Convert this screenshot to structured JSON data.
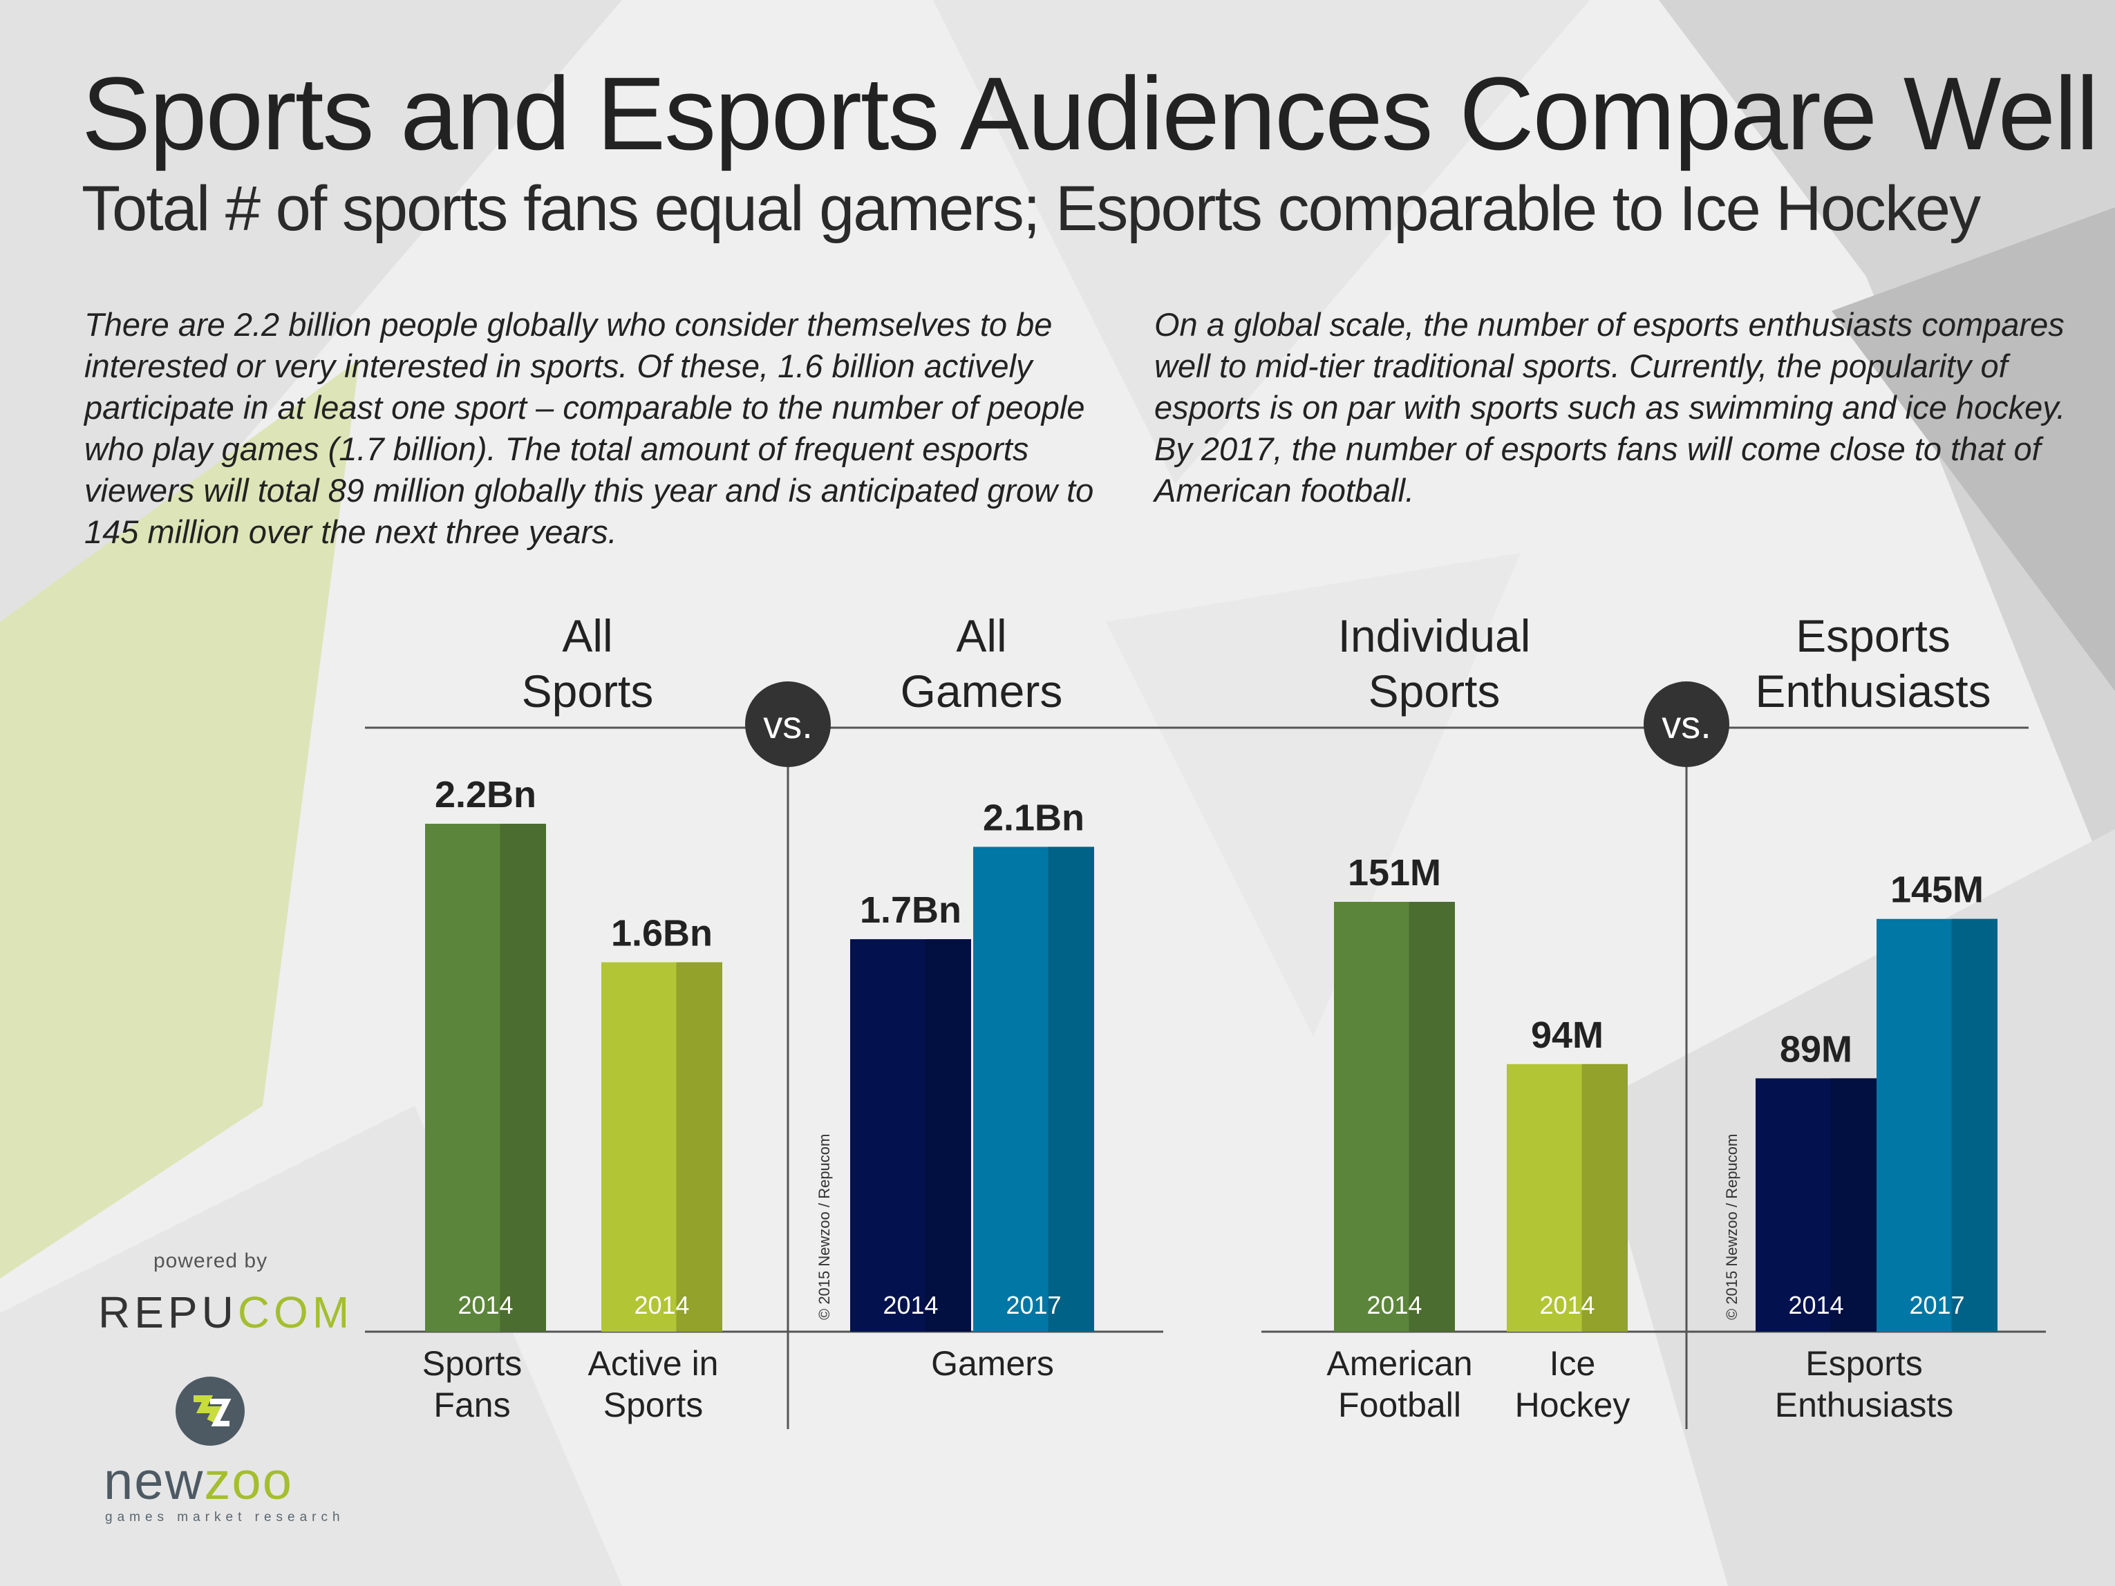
{
  "header": {
    "title": "Sports and Esports Audiences Compare Well",
    "subtitle": "Total # of sports fans equal gamers; Esports comparable to Ice Hockey"
  },
  "paragraphs": {
    "left": "There are 2.2 billion people globally who consider themselves to be interested or very interested in sports. Of these, 1.6 billion actively participate in at least one sport – comparable to the number of people who play games (1.7 billion). The total amount of frequent esports viewers will total 89 million globally this year and is anticipated grow to 145 million over the next three years.",
    "right": "On a global scale, the number of esports enthusiasts compares well to mid-tier traditional sports. Currently, the popularity of esports is on par with sports such as swimming and ice hockey. By 2017, the number of esports fans will come close to that of American football."
  },
  "group_labels": {
    "all_sports": "All Sports",
    "all_gamers": "All Gamers",
    "individual_sports": "Individual Sports",
    "esports_enthusiasts": "Esports Enthusiasts"
  },
  "vs_label": "vs.",
  "copyright": "© 2015 Newzoo / Repucom",
  "branding": {
    "powered_by": "powered by",
    "repucom_main": "REPU",
    "repucom_accent": "COM",
    "newzoo_main": "new",
    "newzoo_accent": "zoo",
    "tagline": "games market research"
  },
  "colors": {
    "green_dark": "#5b853a",
    "green_light": "#b2c535",
    "navy": "#03124f",
    "teal": "#0077a4",
    "vs_circle": "#333333",
    "axis": "#555555"
  },
  "chart_data": [
    {
      "type": "bar",
      "title": "All Sports vs. All Gamers",
      "unit": "billion people",
      "ylim": [
        0,
        2.2
      ],
      "bars": [
        {
          "category": "Sports Fans",
          "year": "2014",
          "value": 2.2,
          "label": "2.2Bn",
          "color": "#5b853a"
        },
        {
          "category": "Active in Sports",
          "year": "2014",
          "value": 1.6,
          "label": "1.6Bn",
          "color": "#b2c535"
        },
        {
          "category": "Gamers",
          "year": "2014",
          "value": 1.7,
          "label": "1.7Bn",
          "color": "#03124f"
        },
        {
          "category": "Gamers",
          "year": "2017",
          "value": 2.1,
          "label": "2.1Bn",
          "color": "#0077a4"
        }
      ]
    },
    {
      "type": "bar",
      "title": "Individual Sports vs. Esports Enthusiasts",
      "unit": "million people",
      "ylim": [
        0,
        151
      ],
      "bars": [
        {
          "category": "American Football",
          "year": "2014",
          "value": 151,
          "label": "151M",
          "color": "#5b853a"
        },
        {
          "category": "Ice Hockey",
          "year": "2014",
          "value": 94,
          "label": "94M",
          "color": "#b2c535"
        },
        {
          "category": "Esports Enthusiasts",
          "year": "2014",
          "value": 89,
          "label": "89M",
          "color": "#03124f"
        },
        {
          "category": "Esports Enthusiasts",
          "year": "2017",
          "value": 145,
          "label": "145M",
          "color": "#0077a4"
        }
      ]
    }
  ]
}
